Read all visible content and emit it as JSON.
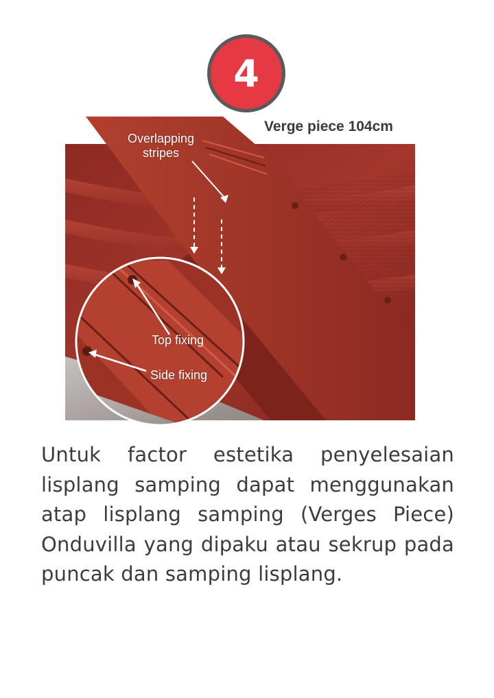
{
  "step": {
    "number": "4"
  },
  "product": {
    "title": "Verge piece 104cm"
  },
  "callouts": {
    "overlap_line1": "Overlapping",
    "overlap_line2": "stripes",
    "top_fixing": "Top fixing",
    "side_fixing": "Side fixing"
  },
  "description": "Untuk factor estetika penyelesaian lisplang samping dapat menggunakan atap lisplang samping (Verges Piece) Onduvilla yang dipaku atau sekrup pada puncak dan samping lisplang.",
  "colors": {
    "badge_red": "#e53a44",
    "badge_ring": "#5a5a5a",
    "roof_red": "#a8372d",
    "text": "#3c3c3c"
  }
}
